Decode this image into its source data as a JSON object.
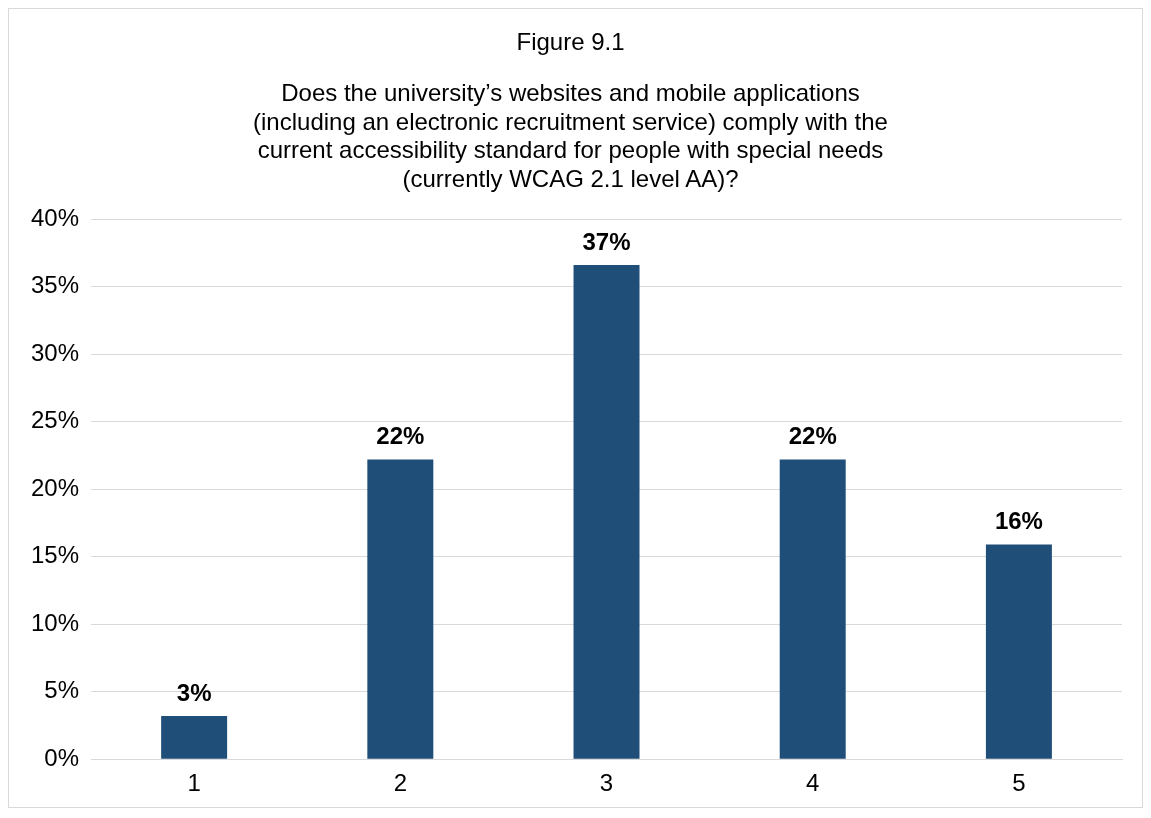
{
  "chart_data": {
    "type": "bar",
    "title": "Figure 9.1",
    "subtitle": "Does the university’s websites and mobile applications\n(including an electronic recruitment service) comply with the\ncurrent accessibility standard for people with special needs\n(currently WCAG 2.1 level AA)?",
    "categories": [
      "1",
      "2",
      "3",
      "4",
      "5"
    ],
    "values": [
      3.2,
      22.2,
      36.6,
      22.2,
      15.9
    ],
    "value_labels": [
      "3%",
      "22%",
      "37%",
      "22%",
      "16%"
    ],
    "color": "#1f4e79",
    "ylim": [
      0,
      40
    ],
    "yticks": [
      {
        "value": 0,
        "label": "0%"
      },
      {
        "value": 5,
        "label": "5%"
      },
      {
        "value": 10,
        "label": "10%"
      },
      {
        "value": 15,
        "label": "15%"
      },
      {
        "value": 20,
        "label": "20%"
      },
      {
        "value": 25,
        "label": "25%"
      },
      {
        "value": 30,
        "label": "30%"
      },
      {
        "value": 35,
        "label": "35%"
      },
      {
        "value": 40,
        "label": "40%"
      }
    ],
    "grid": "y"
  }
}
